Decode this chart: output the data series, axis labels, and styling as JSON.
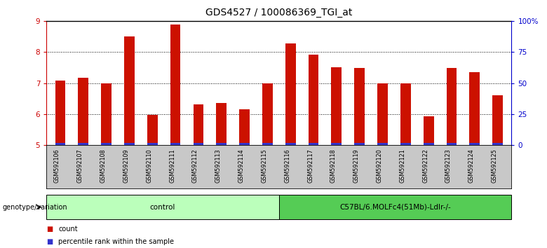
{
  "title": "GDS4527 / 100086369_TGI_at",
  "samples": [
    "GSM592106",
    "GSM592107",
    "GSM592108",
    "GSM592109",
    "GSM592110",
    "GSM592111",
    "GSM592112",
    "GSM592113",
    "GSM592114",
    "GSM592115",
    "GSM592116",
    "GSM592117",
    "GSM592118",
    "GSM592119",
    "GSM592120",
    "GSM592121",
    "GSM592122",
    "GSM592123",
    "GSM592124",
    "GSM592125"
  ],
  "count_values": [
    7.08,
    7.18,
    6.98,
    8.5,
    5.98,
    8.88,
    6.32,
    6.36,
    6.15,
    6.98,
    8.28,
    7.92,
    7.52,
    7.48,
    6.98,
    6.98,
    5.92,
    7.48,
    7.35,
    6.6
  ],
  "percentile_values": [
    0.07,
    0.07,
    0.07,
    0.08,
    0.08,
    0.08,
    0.06,
    0.07,
    0.06,
    0.06,
    0.07,
    0.07,
    0.07,
    0.07,
    0.07,
    0.06,
    0.06,
    0.07,
    0.07,
    0.06
  ],
  "bar_bottom": 5.0,
  "ylim_left": [
    5.0,
    9.0
  ],
  "ylim_right": [
    0,
    100
  ],
  "yticks_left": [
    5,
    6,
    7,
    8,
    9
  ],
  "yticks_right": [
    0,
    25,
    50,
    75,
    100
  ],
  "ytick_labels_right": [
    "0",
    "25",
    "50",
    "75",
    "100%"
  ],
  "bar_color_red": "#CC1100",
  "bar_color_blue": "#3333CC",
  "groups": [
    {
      "label": "control",
      "start": 0,
      "end": 10,
      "color": "#BBFFBB"
    },
    {
      "label": "C57BL/6.MOLFc4(51Mb)-Ldlr-/-",
      "start": 10,
      "end": 20,
      "color": "#55CC55"
    }
  ],
  "group_row_label": "genotype/variation",
  "legend_items": [
    {
      "color": "#CC1100",
      "label": "count"
    },
    {
      "color": "#3333CC",
      "label": "percentile rank within the sample"
    }
  ],
  "xlabel_color_left": "#CC0000",
  "xlabel_color_right": "#0000CC",
  "bar_width": 0.45
}
